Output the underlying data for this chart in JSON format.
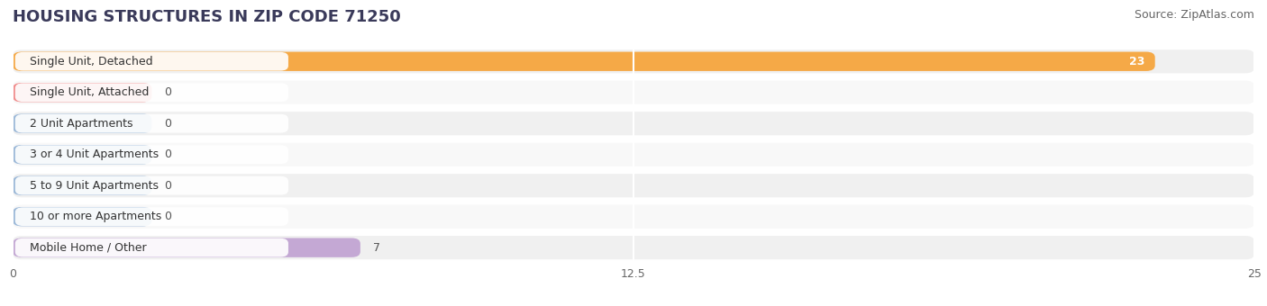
{
  "title": "HOUSING STRUCTURES IN ZIP CODE 71250",
  "source": "Source: ZipAtlas.com",
  "categories": [
    "Single Unit, Detached",
    "Single Unit, Attached",
    "2 Unit Apartments",
    "3 or 4 Unit Apartments",
    "5 to 9 Unit Apartments",
    "10 or more Apartments",
    "Mobile Home / Other"
  ],
  "values": [
    23,
    0,
    0,
    0,
    0,
    0,
    7
  ],
  "bar_colors": [
    "#F5A947",
    "#F08C8C",
    "#9BB8D8",
    "#9BB8D8",
    "#9BB8D8",
    "#9BB8D8",
    "#C4A8D4"
  ],
  "xlim": [
    0,
    25
  ],
  "xticks": [
    0,
    12.5,
    25
  ],
  "row_colors": [
    "#f0f0f0",
    "#f8f8f8"
  ],
  "pill_bg_color": "#e4e4e4",
  "title_fontsize": 13,
  "source_fontsize": 9,
  "label_fontsize": 9,
  "value_fontsize": 9,
  "bar_height": 0.62
}
